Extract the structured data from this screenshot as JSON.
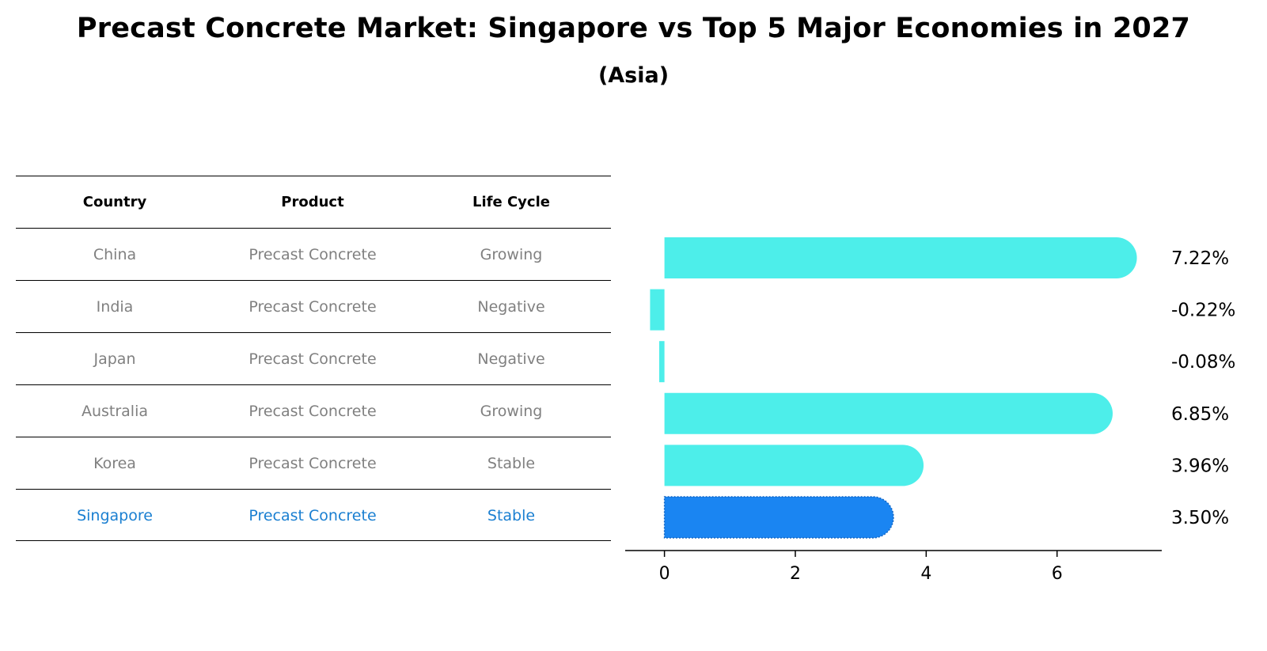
{
  "title": "Precast Concrete Market: Singapore vs Top 5 Major Economies in 2027",
  "subtitle": "(Asia)",
  "table": {
    "headers": [
      "Country",
      "Product",
      "Life Cycle"
    ],
    "rows": [
      [
        "China",
        "Precast Concrete",
        "Growing"
      ],
      [
        "India",
        "Precast Concrete",
        "Negative"
      ],
      [
        "Japan",
        "Precast Concrete",
        "Negative"
      ],
      [
        "Australia",
        "Precast Concrete",
        "Growing"
      ],
      [
        "Korea",
        "Precast Concrete",
        "Stable"
      ],
      [
        "Singapore",
        "Precast Concrete",
        "Stable"
      ]
    ]
  },
  "colors": {
    "bar": "#4deeea",
    "highlight_bar": "#1a85f2",
    "highlight_text": "#1a7fd1",
    "muted_text": "#808080"
  },
  "chart_data": {
    "type": "bar",
    "orientation": "horizontal",
    "categories": [
      "China",
      "India",
      "Japan",
      "Australia",
      "Korea",
      "Singapore"
    ],
    "values": [
      7.22,
      -0.22,
      -0.08,
      6.85,
      3.96,
      3.5
    ],
    "value_labels": [
      "7.22%",
      "-0.22%",
      "-0.08%",
      "6.85%",
      "3.96%",
      "3.50%"
    ],
    "highlight": "Singapore",
    "xlim": [
      -0.6,
      7.6
    ],
    "xticks": [
      0,
      2,
      4,
      6
    ],
    "xtick_labels": [
      "0",
      "2",
      "4",
      "6"
    ],
    "xlabel": "",
    "ylabel": "",
    "grid": false
  }
}
